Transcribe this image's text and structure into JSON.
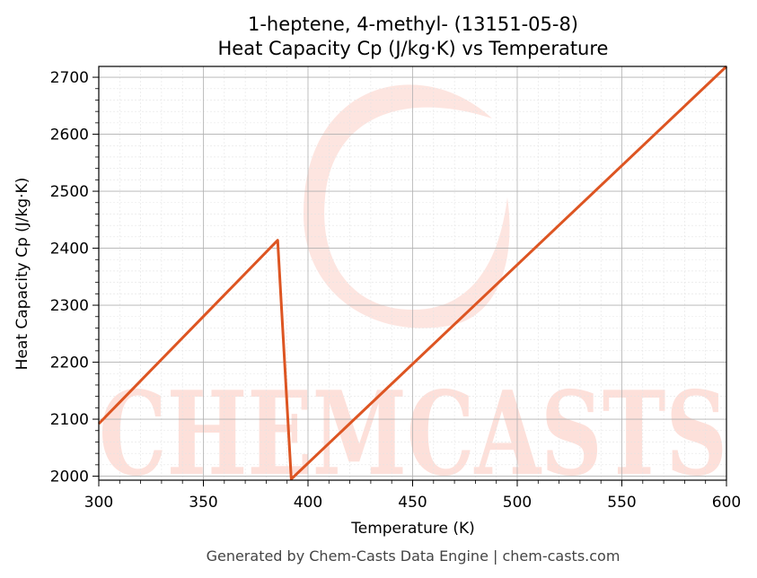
{
  "chart_data": {
    "type": "line",
    "title_line1": "1-heptene, 4-methyl- (13151-05-8)",
    "title_line2": "Heat Capacity Cp (J/kg·K) vs Temperature",
    "xlabel": "Temperature (K)",
    "ylabel": "Heat Capacity Cp (J/kg·K)",
    "xlim": [
      300,
      600
    ],
    "ylim": [
      1993,
      2719
    ],
    "xticks": [
      300,
      350,
      400,
      450,
      500,
      550,
      600
    ],
    "yticks": [
      2000,
      2100,
      2200,
      2300,
      2400,
      2500,
      2600,
      2700
    ],
    "grid": true,
    "series": [
      {
        "color": "#dd5522",
        "x": [
          300,
          385.5,
          392,
          600
        ],
        "y": [
          2092,
          2414,
          1995,
          2719
        ]
      }
    ]
  },
  "watermark": {
    "text": "CHEMCASTS",
    "color": "#fde0da"
  },
  "footer": "Generated by Chem-Casts Data Engine | chem-casts.com"
}
